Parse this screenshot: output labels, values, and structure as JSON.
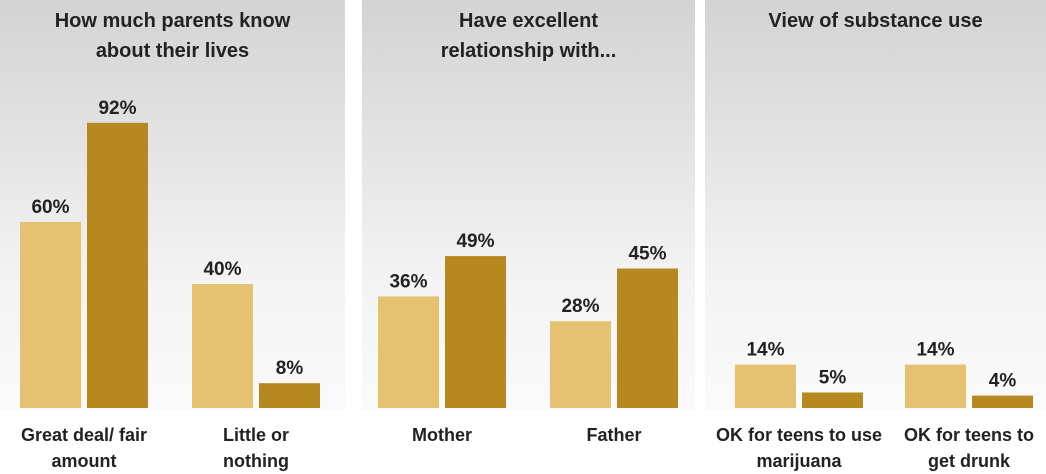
{
  "chart_data": [
    {
      "type": "bar",
      "title": "How much parents know about their lives",
      "categories": [
        "Great deal/ fair amount",
        "Little or nothing"
      ],
      "series": [
        {
          "color": "#e4c272",
          "values": [
            60,
            40
          ],
          "value_labels": [
            "60%",
            "40%"
          ]
        },
        {
          "color": "#b58820",
          "values": [
            92,
            8
          ],
          "value_labels": [
            "92%",
            "8%"
          ]
        }
      ]
    },
    {
      "type": "bar",
      "title": "Have excellent relationship with...",
      "categories": [
        "Mother",
        "Father"
      ],
      "series": [
        {
          "color": "#e4c272",
          "values": [
            36,
            28
          ],
          "value_labels": [
            "36%",
            "28%"
          ]
        },
        {
          "color": "#b58820",
          "values": [
            49,
            45
          ],
          "value_labels": [
            "49%",
            "45%"
          ]
        }
      ]
    },
    {
      "type": "bar",
      "title": "View of substance use",
      "categories": [
        "OK for teens to use marijuana",
        "OK for teens to get drunk"
      ],
      "series": [
        {
          "color": "#e4c272",
          "values": [
            14,
            14
          ],
          "value_labels": [
            "14%",
            "14%"
          ]
        },
        {
          "color": "#b58820",
          "values": [
            5,
            4
          ],
          "value_labels": [
            "5%",
            "4%"
          ]
        }
      ]
    }
  ]
}
